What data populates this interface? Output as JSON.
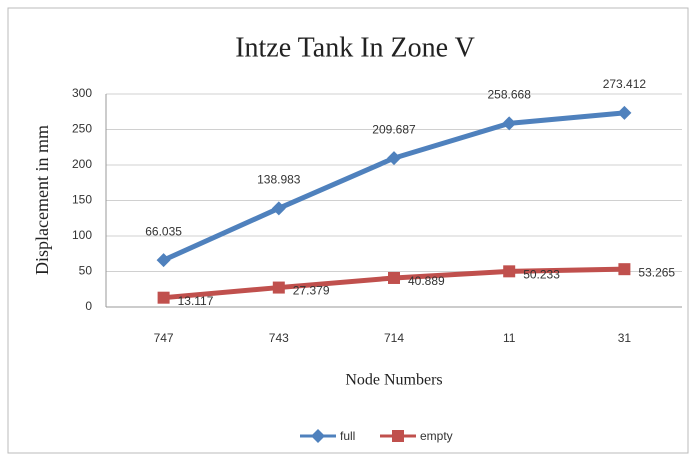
{
  "chart_data": {
    "type": "line",
    "title": "Intze Tank In Zone V",
    "x_label": "Node Numbers",
    "y_label": "Displacement in mm",
    "categories": [
      "747",
      "743",
      "714",
      "11",
      "31"
    ],
    "series": [
      {
        "name": "full",
        "color": "#4f81bd",
        "marker": "diamond",
        "values": [
          66.035,
          138.983,
          209.687,
          258.668,
          273.412
        ]
      },
      {
        "name": "empty",
        "color": "#c0504d",
        "marker": "square",
        "values": [
          13.117,
          27.379,
          40.889,
          50.233,
          53.265
        ]
      }
    ],
    "ylim": [
      0,
      300
    ],
    "yticks": [
      0,
      50,
      100,
      150,
      200,
      250,
      300
    ],
    "grid": true,
    "legend": "bottom"
  }
}
